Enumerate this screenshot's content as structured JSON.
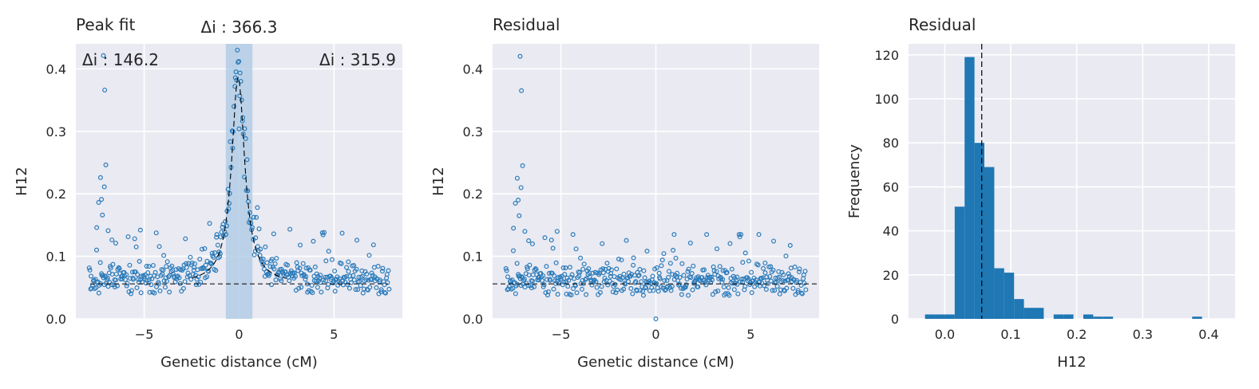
{
  "colors": {
    "axes_bg": "#eaeaf2",
    "grid": "#ffffff",
    "marker": "#2b7bba",
    "bar": "#1f77b4",
    "span": "#a9c8e3",
    "dash": "#000000",
    "text": "#262626"
  },
  "chart_data": [
    {
      "type": "scatter",
      "title": "Peak fit",
      "xlabel": "Genetic distance (cM)",
      "ylabel": "H12",
      "xlim": [
        -8.6,
        8.6
      ],
      "ylim": [
        0,
        0.44
      ],
      "xticks": [
        -5,
        0,
        5
      ],
      "yticks": [
        0.0,
        0.1,
        0.2,
        0.3,
        0.4
      ],
      "x_tick_labels": [
        "−5",
        "0",
        "5"
      ],
      "y_tick_labels": [
        "0.0",
        "0.1",
        "0.2",
        "0.3",
        "0.4"
      ],
      "grid": true,
      "baseline": 0.056,
      "span": [
        -0.7,
        0.7
      ],
      "peak_center": -0.05,
      "annotations": [
        {
          "label": "Δi : 146.2",
          "position": "top-left"
        },
        {
          "label": "Δi : 366.3",
          "position": "above-span"
        },
        {
          "label": "Δi : 315.9",
          "position": "top-right"
        }
      ]
    },
    {
      "type": "scatter",
      "title": "Residual",
      "xlabel": "Genetic distance (cM)",
      "ylabel": "H12",
      "xlim": [
        -8.6,
        8.6
      ],
      "ylim": [
        0,
        0.44
      ],
      "xticks": [
        -5,
        0,
        5
      ],
      "yticks": [
        0.0,
        0.1,
        0.2,
        0.3,
        0.4
      ],
      "x_tick_labels": [
        "−5",
        "0",
        "5"
      ],
      "y_tick_labels": [
        "0.0",
        "0.1",
        "0.2",
        "0.3",
        "0.4"
      ],
      "grid": true,
      "baseline": 0.056
    },
    {
      "type": "bar",
      "title": "Residual",
      "xlabel": "H12",
      "ylabel": "Frequency",
      "xlim": [
        -0.055,
        0.44
      ],
      "ylim": [
        0,
        125
      ],
      "xticks": [
        0.0,
        0.1,
        0.2,
        0.3,
        0.4
      ],
      "yticks": [
        0,
        20,
        40,
        60,
        80,
        100,
        120
      ],
      "x_tick_labels": [
        "0.0",
        "0.1",
        "0.2",
        "0.3",
        "0.4"
      ],
      "y_tick_labels": [
        "0",
        "20",
        "40",
        "60",
        "80",
        "100",
        "120"
      ],
      "grid": true,
      "vline": 0.056,
      "bin_edges": [
        -0.03,
        -0.015,
        0.0,
        0.015,
        0.03,
        0.045,
        0.06,
        0.075,
        0.09,
        0.105,
        0.12,
        0.135,
        0.15,
        0.165,
        0.18,
        0.195,
        0.21,
        0.225,
        0.24,
        0.255,
        0.27,
        0.285,
        0.3,
        0.315,
        0.33,
        0.345,
        0.36,
        0.375,
        0.39,
        0.405,
        0.42
      ],
      "values": [
        2,
        2,
        2,
        51,
        119,
        80,
        69,
        23,
        21,
        9,
        5,
        5,
        0,
        2,
        2,
        0,
        2,
        1,
        1,
        0,
        0,
        0,
        0,
        0,
        0,
        0,
        0,
        1,
        0,
        0
      ]
    }
  ]
}
